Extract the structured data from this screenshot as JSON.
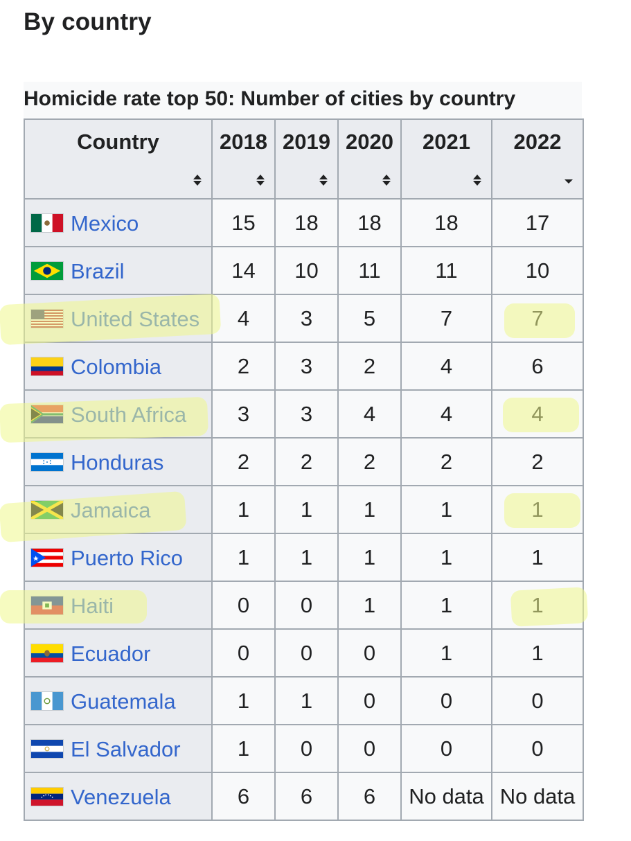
{
  "heading": "By country",
  "caption": "Homicide rate top 50: Number of cities by country",
  "columns": [
    "Country",
    "2018",
    "2019",
    "2020",
    "2021",
    "2022"
  ],
  "rows": [
    {
      "country": "Mexico",
      "flag": "mexico-flag-icon",
      "values": [
        "15",
        "18",
        "18",
        "18",
        "17"
      ]
    },
    {
      "country": "Brazil",
      "flag": "brazil-flag-icon",
      "values": [
        "14",
        "10",
        "11",
        "11",
        "10"
      ]
    },
    {
      "country": "United States",
      "flag": "united-states-flag-icon",
      "values": [
        "4",
        "3",
        "5",
        "7",
        "7"
      ]
    },
    {
      "country": "Colombia",
      "flag": "colombia-flag-icon",
      "values": [
        "2",
        "3",
        "2",
        "4",
        "6"
      ]
    },
    {
      "country": "South Africa",
      "flag": "south-africa-flag-icon",
      "values": [
        "3",
        "3",
        "4",
        "4",
        "4"
      ]
    },
    {
      "country": "Honduras",
      "flag": "honduras-flag-icon",
      "values": [
        "2",
        "2",
        "2",
        "2",
        "2"
      ]
    },
    {
      "country": "Jamaica",
      "flag": "jamaica-flag-icon",
      "values": [
        "1",
        "1",
        "1",
        "1",
        "1"
      ]
    },
    {
      "country": "Puerto Rico",
      "flag": "puerto-rico-flag-icon",
      "values": [
        "1",
        "1",
        "1",
        "1",
        "1"
      ]
    },
    {
      "country": "Haiti",
      "flag": "haiti-flag-icon",
      "values": [
        "0",
        "0",
        "1",
        "1",
        "1"
      ]
    },
    {
      "country": "Ecuador",
      "flag": "ecuador-flag-icon",
      "values": [
        "0",
        "0",
        "0",
        "1",
        "1"
      ]
    },
    {
      "country": "Guatemala",
      "flag": "guatemala-flag-icon",
      "values": [
        "1",
        "1",
        "0",
        "0",
        "0"
      ]
    },
    {
      "country": "El Salvador",
      "flag": "el-salvador-flag-icon",
      "values": [
        "1",
        "0",
        "0",
        "0",
        "0"
      ]
    },
    {
      "country": "Venezuela",
      "flag": "venezuela-flag-icon",
      "values": [
        "6",
        "6",
        "6",
        "No data",
        "No data"
      ]
    }
  ],
  "sort_state": {
    "sorted_column": "2022",
    "direction": "descending"
  },
  "colors": {
    "link": "#3366cc",
    "header_bg": "#eaecf0",
    "cell_bg": "#f8f9fa",
    "border": "#a2a9b1",
    "highlighter": "#eef88c"
  }
}
